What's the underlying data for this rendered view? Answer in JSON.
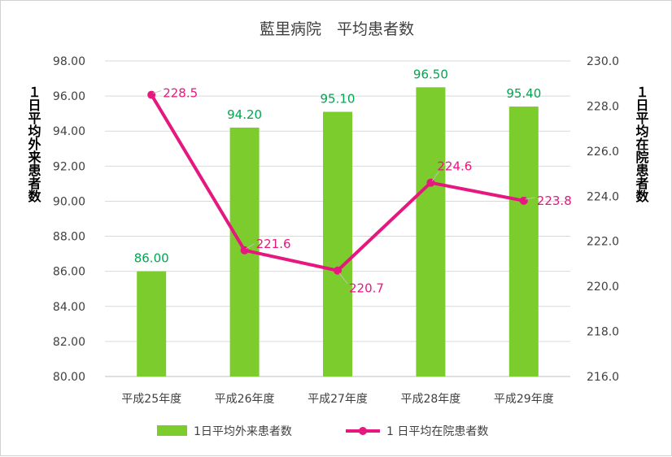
{
  "chart_data": {
    "type": "bar",
    "title": "藍里病院　平均患者数",
    "categories": [
      "平成25年度",
      "平成26年度",
      "平成27年度",
      "平成28年度",
      "平成29年度"
    ],
    "series": [
      {
        "name": "1日平均外来患者数",
        "type": "bar",
        "axis": "left",
        "color": "#7dcc2e",
        "label_color": "#00a651",
        "values": [
          86.0,
          94.2,
          95.1,
          96.5,
          95.4
        ],
        "labels": [
          "86.00",
          "94.20",
          "95.10",
          "96.50",
          "95.40"
        ]
      },
      {
        "name": "1 日平均在院患者数",
        "type": "line",
        "axis": "right",
        "color": "#e6177e",
        "values": [
          228.5,
          221.6,
          220.7,
          224.6,
          223.8
        ],
        "labels": [
          "228.5",
          "221.6",
          "220.7",
          "224.6",
          "223.8"
        ]
      }
    ],
    "y_left": {
      "label": "１日平均外来患者数",
      "ylim": [
        80,
        98
      ],
      "ticks": [
        "80.00",
        "82.00",
        "84.00",
        "86.00",
        "88.00",
        "90.00",
        "92.00",
        "94.00",
        "96.00",
        "98.00"
      ]
    },
    "y_right": {
      "label": "１日平均在院患者数",
      "ylim": [
        216,
        230
      ],
      "ticks": [
        "216.0",
        "218.0",
        "220.0",
        "222.0",
        "224.0",
        "226.0",
        "228.0",
        "230.0"
      ]
    },
    "grid": true,
    "legend_position": "bottom"
  }
}
